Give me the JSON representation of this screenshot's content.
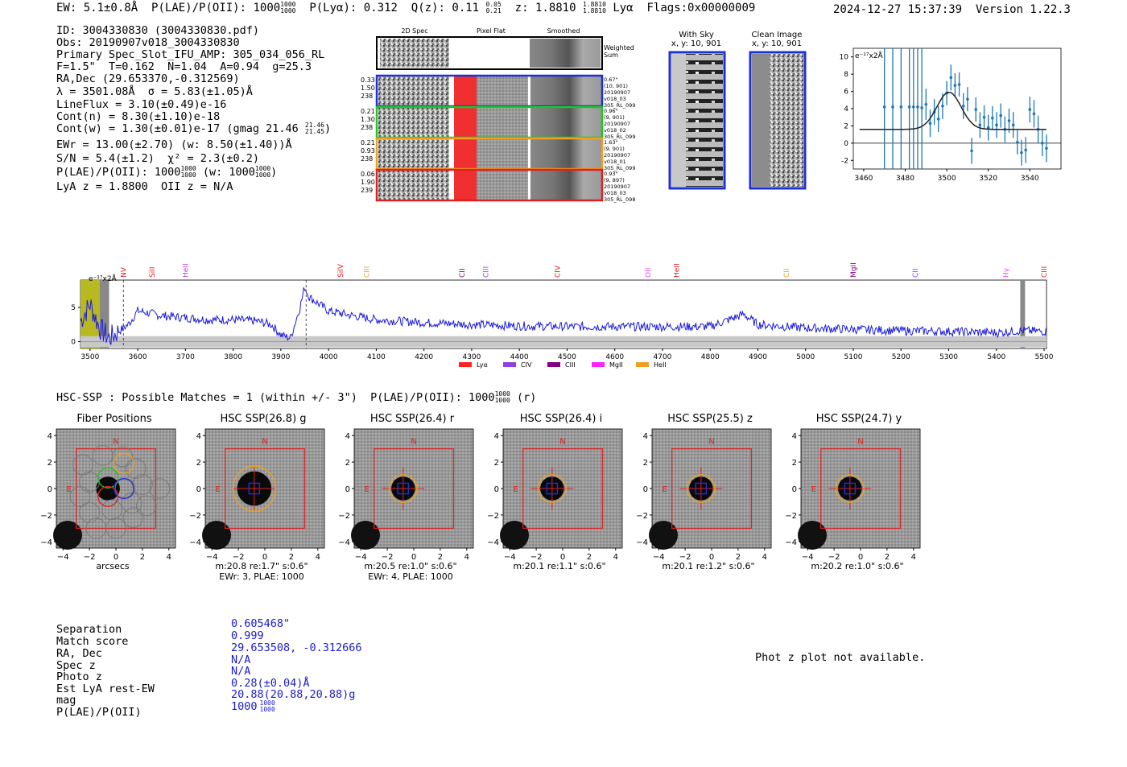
{
  "header": {
    "ew": "5.1±0.8",
    "ew_unit": "Å",
    "plae_label": "P(LAE)/P(OII):",
    "plae_value": "1000",
    "plae_hi": "1000",
    "plae_lo": "1000",
    "plya_label": "P(Lyα):",
    "plya_value": "0.312",
    "qz_label": "Q(z):",
    "qz_value": "0.11",
    "qz_hi": "0.05",
    "qz_lo": "0.21",
    "z_label": "z:",
    "z_value": "1.8810",
    "z_hi": "1.8810",
    "z_lo": "1.8810",
    "z_line": "Lyα",
    "flags": "Flags:0x00000009",
    "datetime": "2024-12-27 15:37:39",
    "version": "Version 1.22.3"
  },
  "info": {
    "id": "ID: 3004330830 (3004330830.pdf)",
    "obs": "Obs: 20190907v018_3004330830",
    "slot": "Primary Spec_Slot_IFU_AMP: 305_034_056_RL",
    "params": "F=1.5\"  T=0.162  N=1.04  A=0.94  g=25.3",
    "radec": "RA,Dec (29.653370,-0.312569)",
    "lambda": "λ = 3501.08Å  σ = 5.83(±1.05)Å",
    "lineflux": "LineFlux = 3.10(±0.49)e-16",
    "contn": "Cont(n) = 8.30(±1.10)e-18",
    "contw": "Cont(w) = 1.30(±0.01)e-17 (gmag 21.46",
    "contw_hi": "21.46",
    "contw_lo": "21.45",
    "ewr": "EWr = 13.00(±2.70) (w: 8.50(±1.40))Å",
    "sn": "S/N = 5.4(±1.2)  χ² = 2.3(±0.2)",
    "plae": "P(LAE)/P(OII): 1000",
    "plae_w": "(w: 1000",
    "lya": "LyA z = 1.8800  OII z = N/A"
  },
  "fiber_stamps": {
    "col_headers": [
      "2D Spec",
      "Pixel Flat",
      "Smoothed"
    ],
    "weighted_label": "Weighted Sum",
    "rows": [
      {
        "left": [
          "0.33",
          "1.50",
          "238"
        ],
        "right": [
          "0.67\"",
          "(10, 901)",
          "20190907",
          "v018_03",
          "305_RL_099"
        ],
        "color": "#1f2fd8"
      },
      {
        "left": [
          "0.21",
          "1.30",
          "238"
        ],
        "right": [
          "0.96\"",
          "(9, 901)",
          "20190907",
          "v018_02",
          "305_RL_099"
        ],
        "color": "#22c422"
      },
      {
        "left": [
          "0.21",
          "0.93",
          "238"
        ],
        "right": [
          "1.63\"",
          "(9, 901)",
          "20190907",
          "v018_01",
          "305_RL_099"
        ],
        "color": "#f0a020"
      },
      {
        "left": [
          "0.06",
          "1.90",
          "239"
        ],
        "right": [
          "0.93\"",
          "(9, 897)",
          "20190907",
          "v018_03",
          "305_RL_098"
        ],
        "color": "#e02020"
      }
    ]
  },
  "sky_panels": {
    "with_sky_title": "With Sky",
    "with_sky_coords": "x, y: 10, 901",
    "clean_title": "Clean Image",
    "clean_coords": "x, y: 10, 901"
  },
  "zoom_chart": {
    "ylabel": "e⁻¹⁷x2Å",
    "x_ticks": [
      3460,
      3480,
      3500,
      3520,
      3540
    ],
    "y_ticks": [
      -2,
      0,
      2,
      4,
      6,
      8,
      10
    ],
    "xlim": [
      3455,
      3555
    ],
    "ylim": [
      -3,
      11
    ]
  },
  "chart_data": [
    {
      "type": "scatter",
      "title": "",
      "xlabel": "",
      "ylabel": "e⁻¹⁷x2Å",
      "xlim": [
        3455,
        3555
      ],
      "ylim": [
        -3,
        11
      ],
      "points": {
        "x": [
          3470,
          3474,
          3478,
          3482,
          3484,
          3486,
          3488,
          3490,
          3492,
          3494,
          3496,
          3498,
          3500,
          3502,
          3504,
          3506,
          3508,
          3510,
          3512,
          3514,
          3516,
          3518,
          3520,
          3522,
          3524,
          3526,
          3528,
          3530,
          3532,
          3534,
          3536,
          3538,
          3540,
          3542,
          3544,
          3546,
          3548
        ],
        "y": [
          4.2,
          4.2,
          4.2,
          4.2,
          4.2,
          4.2,
          4.1,
          4.5,
          2.3,
          3.6,
          2.8,
          4.3,
          5.8,
          7.6,
          6.7,
          6.8,
          4.3,
          5.1,
          -0.9,
          3.9,
          2.1,
          3.0,
          1.8,
          2.9,
          2.1,
          3.2,
          1.6,
          2.6,
          2.1,
          0.1,
          -1.1,
          -0.8,
          3.9,
          3.4,
          1.6,
          0.0,
          -0.6
        ],
        "err": [
          10,
          10,
          10,
          10,
          10,
          10,
          8,
          1.8,
          1.6,
          1.5,
          1.5,
          1.5,
          1.4,
          1.5,
          1.4,
          1.4,
          1.5,
          1.4,
          1.5,
          1.4,
          1.5,
          1.4,
          1.5,
          1.4,
          1.5,
          1.4,
          1.5,
          1.4,
          1.5,
          1.4,
          1.5,
          1.5,
          1.5,
          1.6,
          1.6,
          1.5,
          1.6
        ]
      },
      "fit": {
        "amp": 4.3,
        "mu": 3501.08,
        "sigma": 5.83,
        "cont": 1.6,
        "x_range": [
          3458,
          3548
        ]
      },
      "zero_line": 0
    },
    {
      "type": "line",
      "title": "",
      "ylabel": "e⁻¹⁷x2Å",
      "xlim": [
        3480,
        5505
      ],
      "ylim": [
        -1,
        9
      ],
      "x_ticks": [
        3500,
        3600,
        3700,
        3800,
        3900,
        4000,
        4100,
        4200,
        4300,
        4400,
        4500,
        4600,
        4700,
        4800,
        4900,
        5000,
        5100,
        5200,
        5300,
        5400,
        5500
      ],
      "y_ticks": [
        0,
        5
      ],
      "series_anchor_x": [
        3480,
        3500,
        3520,
        3540,
        3560,
        3580,
        3600,
        3650,
        3700,
        3750,
        3800,
        3850,
        3880,
        3900,
        3920,
        3940,
        3950,
        3960,
        3980,
        4000,
        4050,
        4100,
        4200,
        4300,
        4400,
        4500,
        4600,
        4700,
        4800,
        4870,
        4900,
        5000,
        5100,
        5200,
        5300,
        5400,
        5450,
        5500
      ],
      "series_anchor_y": [
        3,
        5.5,
        2,
        0.5,
        1.5,
        2.5,
        4.5,
        3.8,
        3.5,
        3.2,
        3.2,
        3.0,
        2.5,
        1.0,
        0.5,
        5.0,
        8.0,
        6.5,
        5.5,
        4.5,
        3.8,
        3.2,
        2.8,
        2.5,
        2.3,
        2.2,
        2.2,
        2.2,
        2.2,
        4.0,
        2.5,
        2.0,
        1.8,
        1.6,
        1.5,
        1.3,
        1.6,
        1.5
      ],
      "markers": [
        {
          "x": 3570,
          "dashed": true
        },
        {
          "x": 3953,
          "dashed": true
        }
      ],
      "lines": [
        {
          "label": "NV",
          "x": 3570,
          "color": "#e02020"
        },
        {
          "label": "SiII",
          "x": 3630,
          "color": "#e02020"
        },
        {
          "label": "HeII",
          "x": 3700,
          "color": "#c040e0"
        },
        {
          "label": "SiIV",
          "x": 4025,
          "color": "#e02020"
        },
        {
          "label": "CIII",
          "x": 4080,
          "color": "#f0a020"
        },
        {
          "label": "CII",
          "x": 4280,
          "color": "#800080"
        },
        {
          "label": "CIII",
          "x": 4330,
          "color": "#a040ff"
        },
        {
          "label": "CIV",
          "x": 4480,
          "color": "#e02020"
        },
        {
          "label": "OII",
          "x": 4670,
          "color": "#ff40ff"
        },
        {
          "label": "HeII",
          "x": 4730,
          "color": "#e02020"
        },
        {
          "label": "CII",
          "x": 4960,
          "color": "#f0a020"
        },
        {
          "label": "MgII",
          "x": 5100,
          "color": "#800080"
        },
        {
          "label": "CII",
          "x": 5230,
          "color": "#a040ff"
        },
        {
          "label": "Hγ",
          "x": 5420,
          "color": "#ff40ff"
        },
        {
          "label": "CIII",
          "x": 5500,
          "color": "#e02020"
        }
      ],
      "legend": [
        {
          "label": "Lyα",
          "color": "#ff2020"
        },
        {
          "label": "CIV",
          "color": "#9040e0"
        },
        {
          "label": "CIII",
          "color": "#800080"
        },
        {
          "label": "MgII",
          "color": "#ff20ff"
        },
        {
          "label": "HeII",
          "color": "#f0a020"
        }
      ]
    }
  ],
  "hsc": {
    "title": "HSC-SSP : Possible Matches = 1 (within +/- 3\")  P(LAE)/P(OII): 1000",
    "title_hi": "1000",
    "title_lo": "1000",
    "title_tail": "(r)",
    "panels": [
      {
        "title": "Fiber Positions",
        "foot1": "arcsecs",
        "foot2": ""
      },
      {
        "title": "HSC SSP(26.8) g",
        "foot1": "m:20.8  re:1.7\"  s:0.6\"",
        "foot2": "EWr: 3, PLAE: 1000"
      },
      {
        "title": "HSC SSP(26.4) r",
        "foot1": "m:20.5  re:1.0\"  s:0.6\"",
        "foot2": "EWr: 4, PLAE: 1000"
      },
      {
        "title": "HSC SSP(26.4) i",
        "foot1": "m:20.1  re:1.1\"  s:0.6\"",
        "foot2": ""
      },
      {
        "title": "HSC SSP(25.5) z",
        "foot1": "m:20.1  re:1.2\"  s:0.6\"",
        "foot2": ""
      },
      {
        "title": "HSC SSP(24.7) y",
        "foot1": "m:20.2  re:1.0\"  s:0.6\"",
        "foot2": ""
      }
    ],
    "x_ticks": [
      "−4",
      "−2",
      "0",
      "2",
      "4"
    ],
    "y_ticks": [
      "4",
      "2",
      "0",
      "−2",
      "−4"
    ],
    "north": "N",
    "east": "E"
  },
  "match": {
    "labels": [
      "Separation",
      "Match score",
      "RA, Dec",
      "Spec z",
      "Photo z",
      "Est LyA rest-EW",
      "mag",
      "P(LAE)/P(OII)"
    ],
    "values": [
      "0.605468\"",
      "0.999",
      "29.653508, -0.312666",
      "N/A",
      "N/A",
      "0.28(±0.04)Å",
      "20.88(20.88,20.88)g",
      "1000"
    ],
    "plae_hi": "1000",
    "plae_lo": "1000",
    "photz_msg": "Phot z plot not available."
  }
}
